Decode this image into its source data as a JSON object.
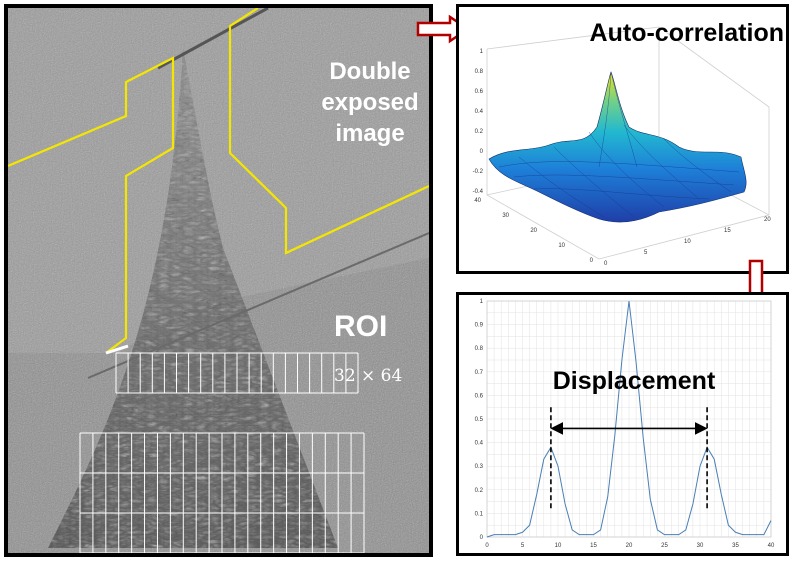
{
  "labels": {
    "double_exposed": "Double\nexposed\nimage",
    "roi": "ROI",
    "grid_size": "32 × 64",
    "autocorrelation": "Auto-correlation",
    "displacement": "Displacement"
  },
  "colors": {
    "outline": "#f5e600",
    "arrow": "#b00000",
    "curve": "#4a7fb5"
  },
  "autocorrelation_axes": {
    "z_ticks": [
      "1",
      "0.8",
      "0.6",
      "0.4",
      "0.2",
      "0",
      "-0.2",
      "-0.4"
    ],
    "y_ticks": [
      "40",
      "30",
      "20",
      "10",
      "0"
    ],
    "x_ticks": [
      "0",
      "5",
      "10",
      "15",
      "20"
    ]
  },
  "chart_data": {
    "type": "line",
    "x": [
      0,
      1,
      2,
      3,
      4,
      5,
      6,
      7,
      8,
      9,
      10,
      11,
      12,
      13,
      14,
      15,
      16,
      17,
      18,
      19,
      20,
      21,
      22,
      23,
      24,
      25,
      26,
      27,
      28,
      29,
      30,
      31,
      32,
      33,
      34,
      35,
      36,
      37,
      38,
      39,
      40
    ],
    "y": [
      0,
      0.01,
      0.01,
      0.01,
      0.01,
      0.02,
      0.05,
      0.18,
      0.33,
      0.38,
      0.3,
      0.14,
      0.03,
      0.01,
      0.01,
      0.01,
      0.03,
      0.17,
      0.43,
      0.75,
      1.0,
      0.74,
      0.42,
      0.16,
      0.03,
      0.01,
      0.01,
      0.01,
      0.03,
      0.14,
      0.3,
      0.38,
      0.33,
      0.18,
      0.05,
      0.02,
      0.01,
      0.01,
      0.01,
      0.01,
      0.07
    ],
    "xlim": [
      0,
      40
    ],
    "ylim": [
      0,
      1
    ],
    "x_ticks": [
      0,
      5,
      10,
      15,
      20,
      25,
      30,
      35,
      40
    ],
    "y_ticks": [
      0,
      0.1,
      0.2,
      0.3,
      0.4,
      0.5,
      0.6,
      0.7,
      0.8,
      0.9,
      1
    ],
    "grid": true,
    "annotations": {
      "left_peak_x": 9,
      "right_peak_x": 31
    }
  }
}
